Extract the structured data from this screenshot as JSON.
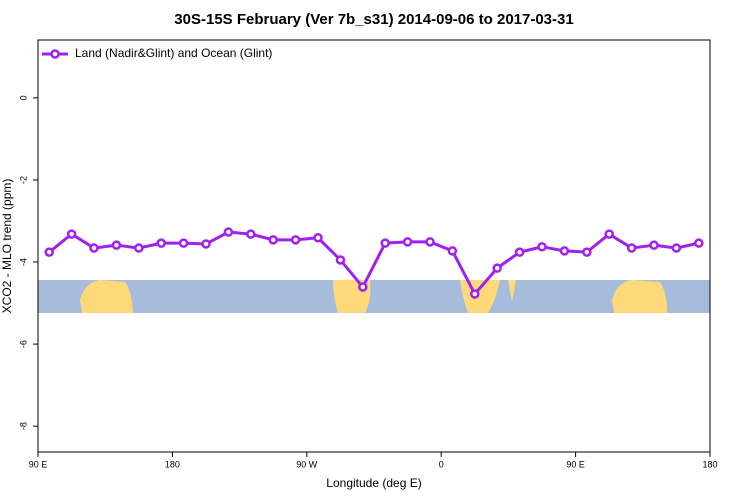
{
  "chart_data": {
    "type": "line",
    "title": "30S-15S February (Ver 7b_s31)   2014-09-06 to 2017-03-31",
    "x_label": "Longitude (deg E)",
    "y_label": "XCO2 - MLO trend (ppm)",
    "x": [
      97.5,
      112.5,
      127.5,
      142.5,
      157.5,
      172.5,
      187.5,
      202.5,
      217.5,
      232.5,
      247.5,
      262.5,
      277.5,
      292.5,
      307.5,
      322.5,
      337.5,
      352.5,
      367.5,
      382.5,
      397.5,
      412.5,
      427.5,
      442.5,
      457.5,
      472.5,
      487.5,
      502.5,
      517.5,
      532.5
    ],
    "series": [
      {
        "name": "Land (Nadir&Glint) and Ocean (Glint)",
        "color": "#a020f0",
        "values": [
          -3.76,
          -3.32,
          -3.66,
          -3.59,
          -3.66,
          -3.54,
          -3.54,
          -3.56,
          -3.27,
          -3.32,
          -3.46,
          -3.46,
          -3.41,
          -3.95,
          -4.61,
          -3.54,
          -3.51,
          -3.51,
          -3.73,
          -4.78,
          -4.15,
          -3.76,
          -3.63,
          -3.73,
          -3.76,
          -3.32,
          -3.66,
          -3.59,
          -3.66,
          -3.54
        ]
      }
    ],
    "xlim": [
      90,
      540
    ],
    "xticks": [
      {
        "value": 90,
        "label": "90 E"
      },
      180,
      {
        "value": 270,
        "label": "90 W"
      },
      {
        "value": 360,
        "label": "0"
      },
      {
        "value": 450,
        "label": "90 E"
      },
      {
        "value": 540,
        "label": "180"
      }
    ],
    "ylim": [
      1.41,
      -8.63
    ],
    "yticks": [
      0,
      -2,
      -4,
      -6,
      -8
    ],
    "legend": "top-left"
  }
}
